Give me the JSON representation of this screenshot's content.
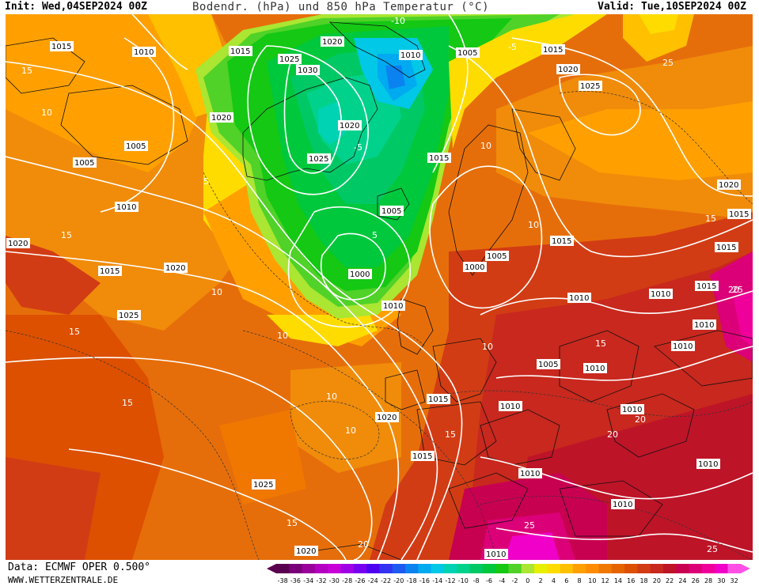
{
  "header": {
    "init": "Init: Wed,04SEP2024 00Z",
    "title": "Bodendr. (hPa) und 850 hPa Temperatur (°C)",
    "valid": "Valid: Tue,10SEP2024 00Z"
  },
  "footer": {
    "data_source": "Data: ECMWF OPER 0.500°",
    "website": "WWW.WETTERZENTRALE.DE"
  },
  "legend": {
    "values": [
      "-38",
      "-36",
      "-34",
      "-32",
      "-30",
      "-28",
      "-26",
      "-24",
      "-22",
      "-20",
      "-18",
      "-16",
      "-14",
      "-12",
      "-10",
      "-8",
      "-6",
      "-4",
      "-2",
      "0",
      "2",
      "4",
      "6",
      "8",
      "10",
      "12",
      "14",
      "16",
      "18",
      "20",
      "22",
      "24",
      "26",
      "28",
      "30",
      "32"
    ],
    "colors": [
      "#5a0050",
      "#7a007a",
      "#9a009a",
      "#b400c0",
      "#c800d8",
      "#a000e6",
      "#7800f0",
      "#5000f0",
      "#3232f0",
      "#1e5af0",
      "#0a82f0",
      "#00aaf0",
      "#00c8e6",
      "#00d2b4",
      "#00d28c",
      "#00c864",
      "#00c83c",
      "#14c814",
      "#50d228",
      "#aae632",
      "#e6f000",
      "#ffdc00",
      "#ffc000",
      "#ffa000",
      "#ff8c00",
      "#f07800",
      "#e66400",
      "#dc5000",
      "#d23c14",
      "#c8281e",
      "#be1428",
      "#c80050",
      "#dc0078",
      "#f0009a",
      "#f000c8",
      "#ff50e6"
    ]
  },
  "isobar_labels": [
    "1015",
    "1010",
    "1015",
    "1020",
    "1025",
    "1030",
    "1010",
    "1005",
    "1015",
    "1020",
    "1025",
    "1020",
    "1020",
    "1025",
    "1005",
    "1005",
    "1010",
    "1020",
    "1015",
    "1020",
    "1025",
    "1015",
    "1015",
    "1005",
    "1000",
    "1000",
    "1005",
    "1010",
    "1020",
    "1015",
    "1015",
    "1010",
    "1010",
    "1010",
    "1005",
    "1010",
    "1010",
    "1010",
    "1015",
    "1020",
    "1015",
    "1010",
    "1015",
    "1025",
    "1010",
    "1010",
    "1010",
    "1020",
    "1010"
  ],
  "isotherm_labels": [
    "15",
    "10",
    "5",
    "10",
    "5",
    "10",
    "15",
    "10",
    "10",
    "10",
    "15",
    "15",
    "20",
    "25",
    "15",
    "20",
    "20",
    "25",
    "-5",
    "-10",
    "-5",
    "10",
    "15",
    "15",
    "20",
    "10",
    "15",
    "25",
    "25"
  ]
}
